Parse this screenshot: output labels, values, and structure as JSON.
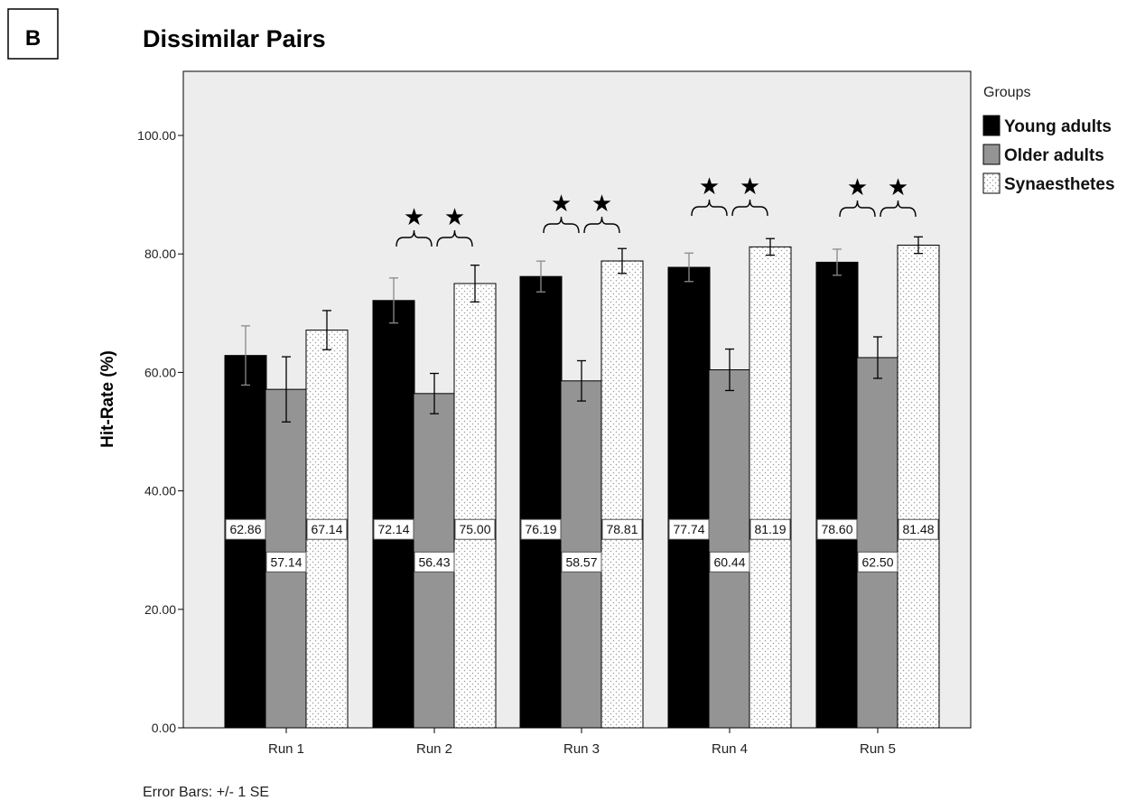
{
  "panel_label": "B",
  "chart_data": {
    "type": "bar",
    "title": "Dissimilar Pairs",
    "xlabel": "",
    "ylabel": "Hit-Rate (%)",
    "ylim": [
      0,
      110
    ],
    "yticks": [
      0,
      20,
      40,
      60,
      80,
      100
    ],
    "ytick_labels": [
      "0.00",
      "20.00",
      "40.00",
      "60.00",
      "80.00",
      "100.00"
    ],
    "categories": [
      "Run 1",
      "Run 2",
      "Run 3",
      "Run 4",
      "Run 5"
    ],
    "series": [
      {
        "name": "Young adults",
        "fill": "#000000",
        "pattern": "solid",
        "values": [
          62.86,
          72.14,
          76.19,
          77.74,
          78.6
        ],
        "value_labels": [
          "62.86",
          "72.14",
          "76.19",
          "77.74",
          "78.60"
        ],
        "error": [
          5.0,
          3.8,
          2.6,
          2.4,
          2.2
        ]
      },
      {
        "name": "Older adults",
        "fill": "#949494",
        "pattern": "solid",
        "values": [
          57.14,
          56.43,
          58.57,
          60.44,
          62.5
        ],
        "value_labels": [
          "57.14",
          "56.43",
          "58.57",
          "60.44",
          "62.50"
        ],
        "error": [
          5.5,
          3.4,
          3.4,
          3.5,
          3.5
        ]
      },
      {
        "name": "Synaesthetes",
        "fill": "#ffffff",
        "pattern": "dotted",
        "values": [
          67.14,
          75.0,
          78.81,
          81.19,
          81.48
        ],
        "value_labels": [
          "67.14",
          "75.00",
          "78.81",
          "81.19",
          "81.48"
        ],
        "error": [
          3.3,
          3.1,
          2.1,
          1.4,
          1.4
        ]
      }
    ],
    "significance": [
      {
        "category": "Run 2",
        "between": [
          "Young adults",
          "Older adults"
        ],
        "symbol": "★"
      },
      {
        "category": "Run 2",
        "between": [
          "Older adults",
          "Synaesthetes"
        ],
        "symbol": "★"
      },
      {
        "category": "Run 3",
        "between": [
          "Young adults",
          "Older adults"
        ],
        "symbol": "★"
      },
      {
        "category": "Run 3",
        "between": [
          "Older adults",
          "Synaesthetes"
        ],
        "symbol": "★"
      },
      {
        "category": "Run 4",
        "between": [
          "Young adults",
          "Older adults"
        ],
        "symbol": "★"
      },
      {
        "category": "Run 4",
        "between": [
          "Older adults",
          "Synaesthetes"
        ],
        "symbol": "★"
      },
      {
        "category": "Run 5",
        "between": [
          "Young adults",
          "Older adults"
        ],
        "symbol": "★"
      },
      {
        "category": "Run 5",
        "between": [
          "Older adults",
          "Synaesthetes"
        ],
        "symbol": "★"
      }
    ],
    "legend": {
      "title": "Groups",
      "position": "right"
    },
    "plot_background": "#ededed",
    "footnote": "Error Bars: +/- 1 SE",
    "grid": false
  }
}
